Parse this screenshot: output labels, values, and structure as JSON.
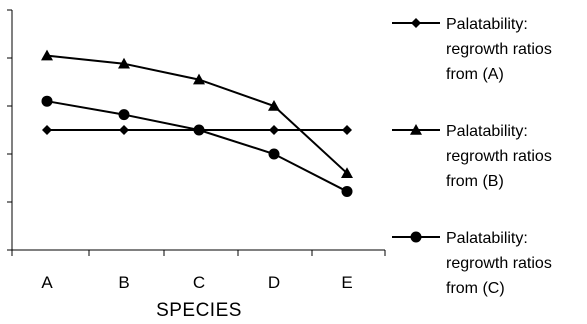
{
  "chart_data": {
    "type": "line",
    "categories": [
      "A",
      "B",
      "C",
      "D",
      "E"
    ],
    "xlabel": "SPECIES",
    "ylabel": "",
    "title": "",
    "ylim": [
      0,
      5
    ],
    "yticks": [
      0,
      1,
      2,
      3,
      4,
      5
    ],
    "y_tick_labels_shown": false,
    "grid": false,
    "legend_position": "right",
    "series": [
      {
        "name": "Palatability: regrowth ratios from (A)",
        "marker": "diamond",
        "values": [
          2.5,
          2.5,
          2.5,
          2.5,
          2.5
        ]
      },
      {
        "name": "Palatability: regrowth ratios from (B)",
        "marker": "triangle",
        "values": [
          4.05,
          3.88,
          3.55,
          3.0,
          1.6
        ]
      },
      {
        "name": "Palatability: regrowth ratios from (C)",
        "marker": "circle",
        "values": [
          3.1,
          2.82,
          2.5,
          2.0,
          1.22
        ]
      }
    ]
  },
  "legend": [
    {
      "lines": [
        "Palatability:",
        "regrowth ratios",
        "from (A)"
      ]
    },
    {
      "lines": [
        "Palatability:",
        "regrowth ratios",
        "from (B)"
      ]
    },
    {
      "lines": [
        "Palatability:",
        "regrowth ratios",
        "from (C)"
      ]
    }
  ],
  "colors": {
    "line": "#000000",
    "background": "#ffffff"
  }
}
